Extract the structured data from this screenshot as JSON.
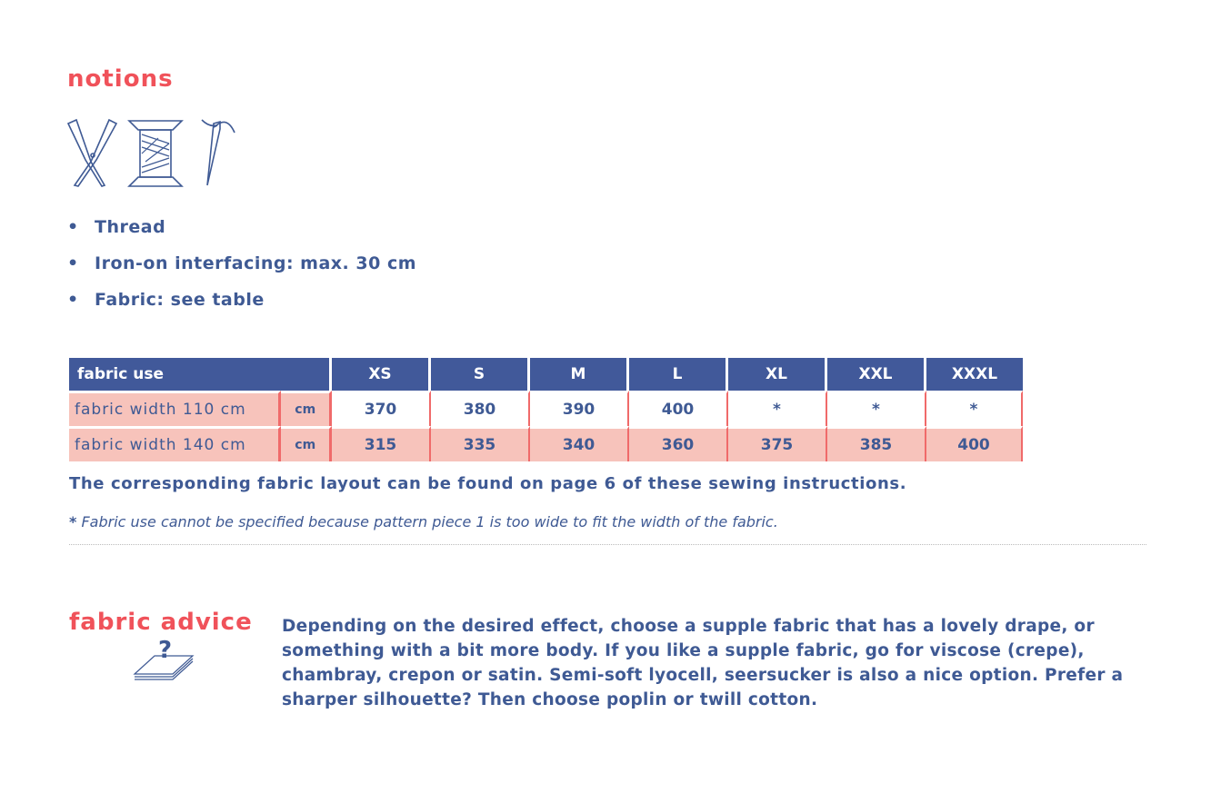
{
  "notions": {
    "title": "notions",
    "icons": [
      "scissors-icon",
      "thread-spool-icon",
      "needle-icon"
    ],
    "items": [
      "Thread",
      "Iron-on interfacing: max. 30 cm",
      "Fabric: see table"
    ]
  },
  "table": {
    "header": "fabric use",
    "sizes": [
      "XS",
      "S",
      "M",
      "L",
      "XL",
      "XXL",
      "XXXL"
    ],
    "rows": [
      {
        "label": "fabric width 110 cm",
        "unit": "cm",
        "values": [
          "370",
          "380",
          "390",
          "400",
          "*",
          "*",
          "*"
        ]
      },
      {
        "label": "fabric width 140 cm",
        "unit": "cm",
        "values": [
          "315",
          "335",
          "340",
          "360",
          "375",
          "385",
          "400"
        ]
      }
    ]
  },
  "layout_note": "The corresponding fabric layout can be found on page 6 of these sewing instructions.",
  "footnote": {
    "marker": "*",
    "text": "Fabric use cannot be specified because pattern piece 1 is too wide to fit the width of the fabric."
  },
  "advice": {
    "title": "fabric advice",
    "icon": "fabric-question-icon",
    "text": "Depending on the desired effect, choose a supple fabric that has a lovely drape, or something with a bit more body. If you like a supple fabric, go for viscose (crepe), chambray, crepon or satin. Semi-soft lyocell, seersucker is also a nice option. Prefer a sharper silhouette? Then choose poplin or twill cotton."
  },
  "colors": {
    "blue": "#3f5a94",
    "red": "#f0525a",
    "pink": "#f7c3bb"
  }
}
